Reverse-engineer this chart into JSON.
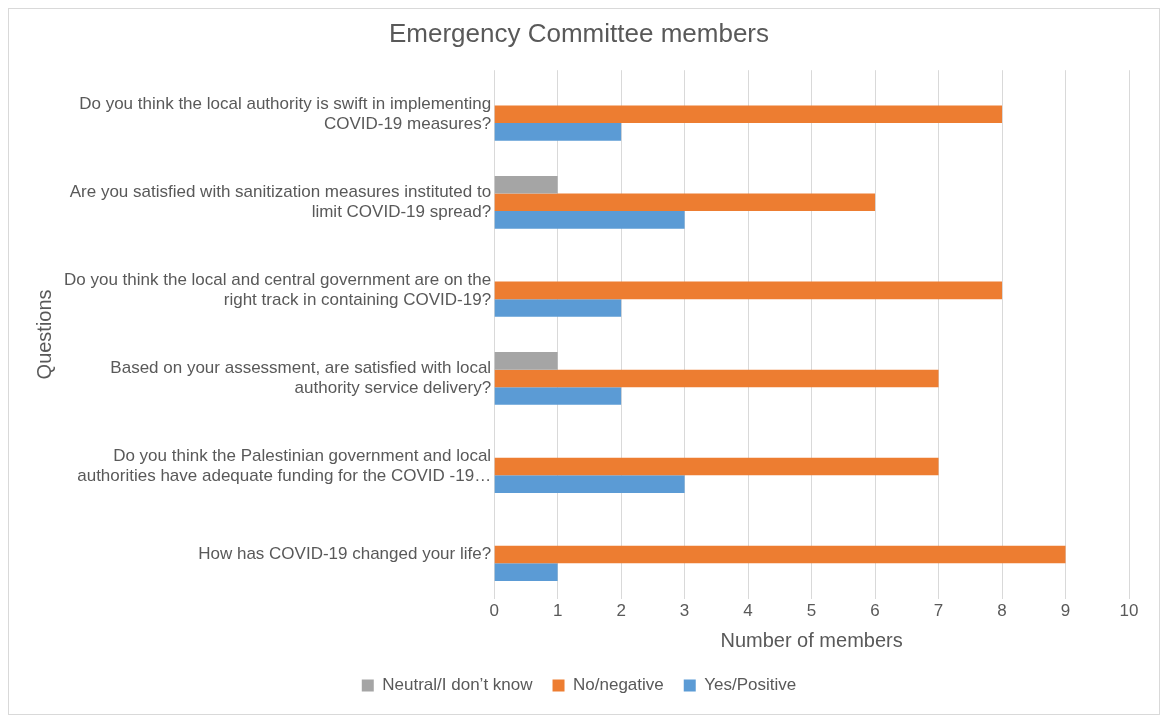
{
  "chart_data": {
    "type": "bar",
    "orientation": "horizontal",
    "title": "Emergency Committee members",
    "xlabel": "Number of members",
    "ylabel": "Questions",
    "categories": [
      "Do you think the local authority is swift in implementing COVID-19 measures?",
      "Are you satisfied with sanitization measures instituted to limit COVID-19 spread?",
      "Do you think the local and central government are on the right track in containing COVID-19?",
      "Based on your assessment, are satisfied with local authority service delivery?",
      "Do you think the Palestinian government and local authorities have adequate funding for the COVID -19…",
      "How has COVID-19 changed your life?"
    ],
    "series": [
      {
        "name": "Neutral/I don’t know",
        "color": "#a5a5a5",
        "values": [
          null,
          1,
          null,
          1,
          null,
          null
        ]
      },
      {
        "name": "No/negative",
        "color": "#ed7d31",
        "values": [
          8,
          6,
          8,
          7,
          7,
          9
        ]
      },
      {
        "name": "Yes/Positive",
        "color": "#5b9bd5",
        "values": [
          2,
          3,
          2,
          2,
          3,
          1
        ]
      }
    ],
    "xlim": [
      0,
      10
    ],
    "xticks": [
      0,
      1,
      2,
      3,
      4,
      5,
      6,
      7,
      8,
      9,
      10
    ],
    "grid": "x",
    "legend": "bottom"
  }
}
